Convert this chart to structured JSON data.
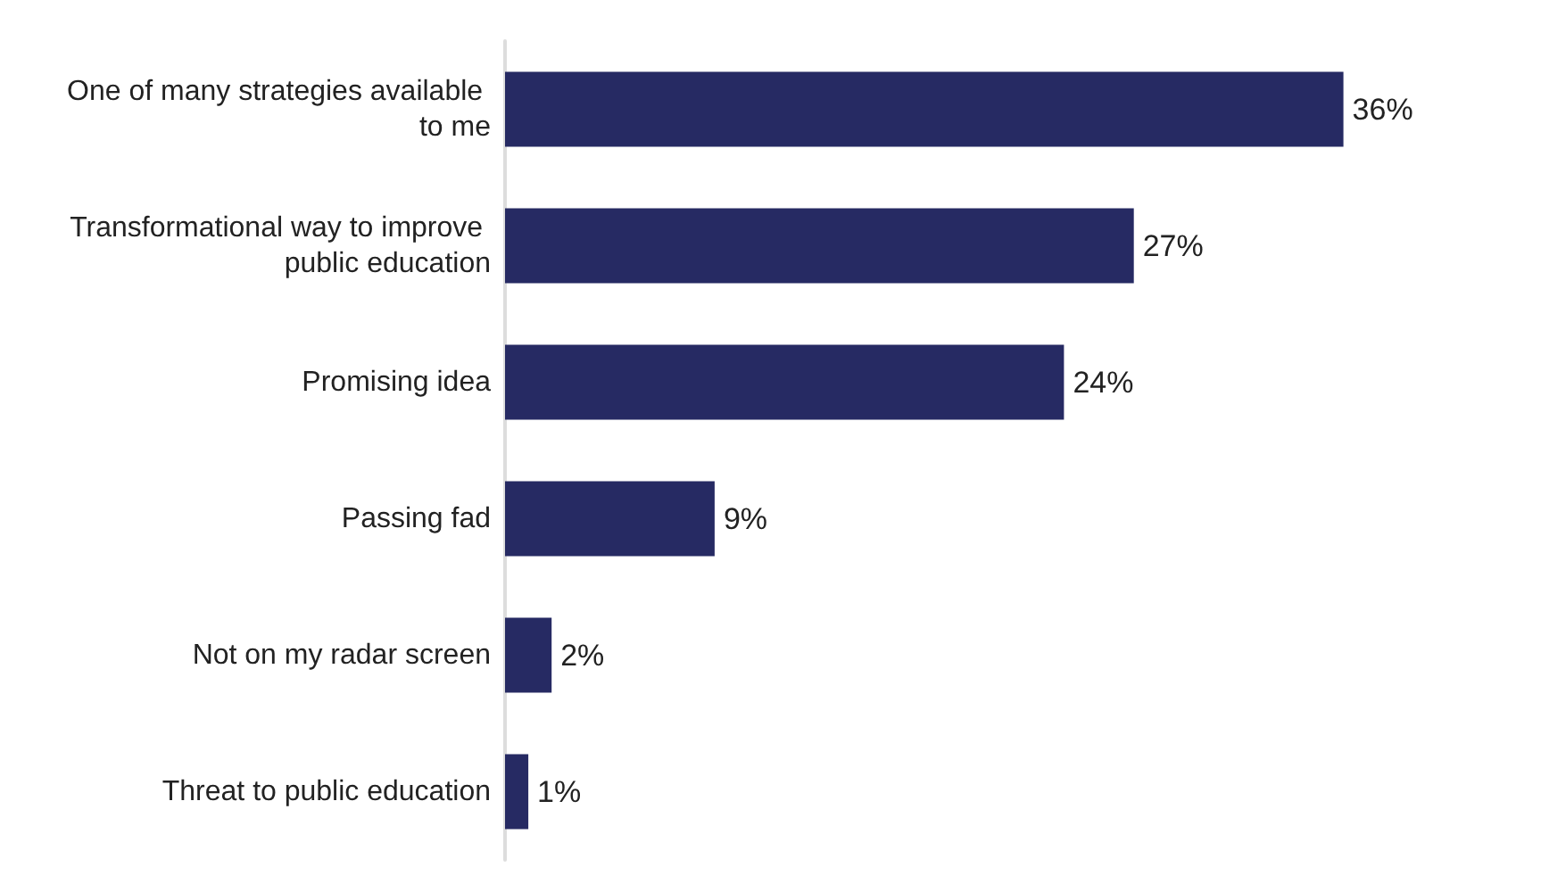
{
  "chart_data": {
    "type": "bar",
    "orientation": "horizontal",
    "categories": [
      "One of many strategies available to me",
      "Transformational way to improve public education",
      "Promising idea",
      "Passing fad",
      "Not on my radar screen",
      "Threat to public education"
    ],
    "values": [
      36,
      27,
      24,
      9,
      2,
      1
    ],
    "value_labels": [
      "36%",
      "27%",
      "24%",
      "9%",
      "2%",
      "1%"
    ],
    "color": "#262a63",
    "tick_labels": "y",
    "grid": false
  }
}
